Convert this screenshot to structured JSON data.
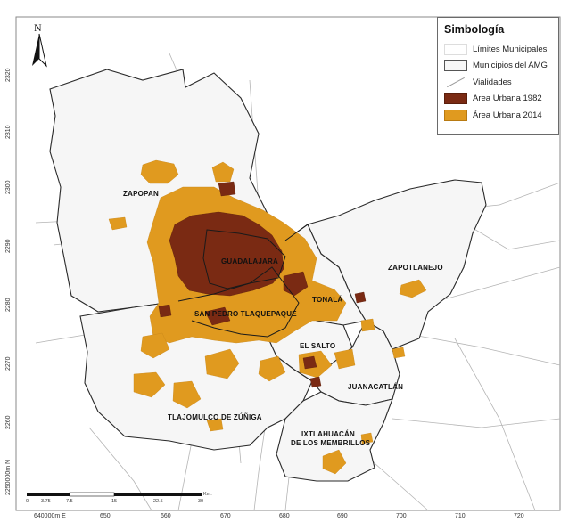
{
  "legend": {
    "title": "Simbología",
    "items": [
      {
        "label": "Límites Municipales",
        "swatch": "outline-light"
      },
      {
        "label": "Municipios del AMG",
        "swatch": "outline-dark",
        "color": "#555555"
      },
      {
        "label": "Vialidades",
        "swatch": "line",
        "color": "#9a9a9a"
      },
      {
        "label": "Área Urbana 1982",
        "swatch": "fill",
        "color": "#7a2a13"
      },
      {
        "label": "Área Urbana 2014",
        "swatch": "fill",
        "color": "#e09a1f"
      }
    ]
  },
  "north_arrow": {
    "label": "N",
    "icon": "north-arrow-icon"
  },
  "municipalities": {
    "zapopan": "ZAPOPAN",
    "guadalajara": "GUADALAJARA",
    "zapotlanejo": "ZAPOTLANEJO",
    "tonala": "TONALÁ",
    "tlaquepaque": "SAN PEDRO TLAQUEPAQUE",
    "el_salto": "EL SALTO",
    "juanacatlan": "JUANACATLÁN",
    "tlajomulco": "TLAJOMULCO DE ZÚÑIGA",
    "ixtlahuacan_1": "IXTLAHUACÁN",
    "ixtlahuacan_2": "DE LOS MEMBRILLOS"
  },
  "axes": {
    "x_ticks": [
      "640000m E",
      "650",
      "660",
      "670",
      "680",
      "690",
      "700",
      "710",
      "720"
    ],
    "y_ticks": [
      "2320",
      "2310",
      "2300",
      "2290",
      "2280",
      "2270",
      "2260",
      "2250000m N"
    ]
  },
  "scale_bar": {
    "labels": [
      "0",
      "3.75",
      "7.5",
      "15",
      "22.5",
      "30"
    ],
    "unit": "Km."
  }
}
